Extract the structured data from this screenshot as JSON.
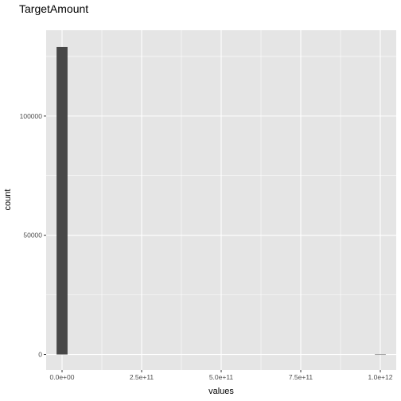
{
  "chart_data": {
    "type": "bar",
    "title": "TargetAmount",
    "xlabel": "values",
    "ylabel": "count",
    "x_ticks": [
      {
        "value": 0,
        "label": "0.0e+00"
      },
      {
        "value": 250000000000,
        "label": "2.5e+11"
      },
      {
        "value": 500000000000,
        "label": "5.0e+11"
      },
      {
        "value": 750000000000,
        "label": "7.5e+11"
      },
      {
        "value": 1000000000000,
        "label": "1.0e+12"
      }
    ],
    "y_ticks": [
      {
        "value": 0,
        "label": "0"
      },
      {
        "value": 50000,
        "label": "50000"
      },
      {
        "value": 100000,
        "label": "100000"
      }
    ],
    "xlim": [
      -50000000000,
      1050000000000
    ],
    "ylim": [
      -6500,
      136000
    ],
    "bins": [
      {
        "center": 0,
        "count": 129000
      },
      {
        "center": 1000000000000,
        "count": 1
      }
    ],
    "bin_width": 34482758620,
    "grid": true,
    "colors": {
      "bar": "#474747",
      "panel": "#e5e5e5",
      "grid": "#ffffff"
    }
  }
}
